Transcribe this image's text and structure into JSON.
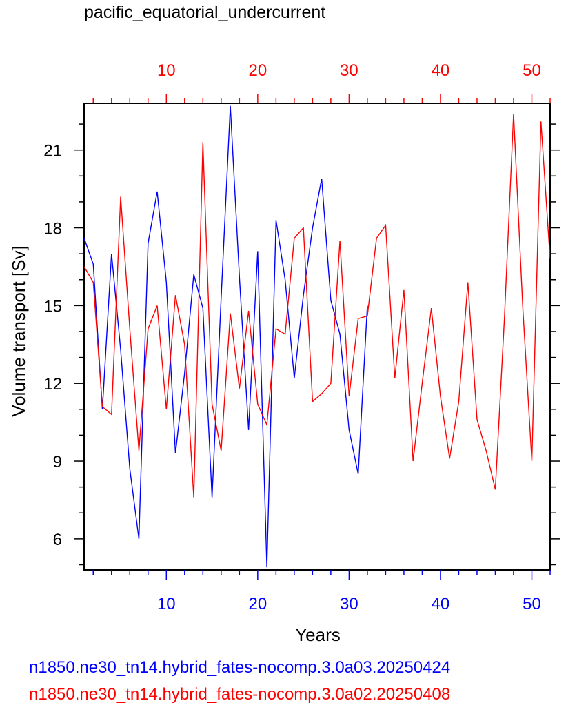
{
  "chart_data": {
    "type": "line",
    "title": "pacific_equatorial_undercurrent",
    "xlabel": "Years",
    "ylabel": "Volume transport [Sv]",
    "xlim": [
      1,
      52
    ],
    "ylim": [
      4.8,
      22.8
    ],
    "x_ticks": [
      10,
      20,
      30,
      40,
      50
    ],
    "y_ticks": [
      6,
      9,
      12,
      15,
      18,
      21
    ],
    "colors": {
      "series1": "#0000ff",
      "series2": "#ff0000",
      "axis": "#000000"
    },
    "series": [
      {
        "name": "n1850.ne30_tn14.hybrid_fates-nocomp.3.0a03.20250424",
        "color": "#0000ff",
        "axis": "bottom",
        "x": [
          1,
          2,
          3,
          4,
          5,
          6,
          7,
          8,
          9,
          10,
          11,
          12,
          13,
          14,
          15,
          16,
          17,
          18,
          19,
          20,
          21,
          22,
          23,
          24,
          25,
          26,
          27,
          28,
          29,
          30,
          31,
          32
        ],
        "values": [
          17.6,
          16.6,
          11.0,
          17.0,
          13.3,
          8.7,
          6.0,
          17.4,
          19.4,
          15.9,
          9.3,
          12.4,
          16.2,
          14.9,
          7.6,
          15.3,
          22.7,
          16.1,
          10.2,
          17.1,
          4.9,
          18.3,
          16.0,
          12.2,
          15.4,
          18.0,
          19.9,
          15.2,
          13.9,
          10.2,
          8.5,
          15.0
        ]
      },
      {
        "name": "n1850.ne30_tn14.hybrid_fates-nocomp.3.0a02.20250408",
        "color": "#ff0000",
        "axis": "top",
        "x": [
          1,
          2,
          3,
          4,
          5,
          6,
          7,
          8,
          9,
          10,
          11,
          12,
          13,
          14,
          15,
          16,
          17,
          18,
          19,
          20,
          21,
          22,
          23,
          24,
          25,
          26,
          27,
          28,
          29,
          30,
          31,
          32,
          33,
          34,
          35,
          36,
          37,
          38,
          39,
          40,
          41,
          42,
          43,
          44,
          45,
          46,
          47,
          48,
          49,
          50,
          51,
          52
        ],
        "values": [
          16.5,
          15.9,
          11.1,
          10.8,
          19.2,
          14.1,
          9.4,
          14.1,
          15.0,
          11.0,
          15.4,
          13.5,
          7.6,
          21.3,
          11.2,
          9.4,
          14.7,
          11.8,
          14.8,
          11.2,
          10.4,
          14.1,
          13.9,
          17.6,
          18.0,
          11.3,
          11.6,
          12.0,
          17.5,
          11.5,
          14.5,
          14.6,
          17.6,
          18.1,
          12.2,
          15.6,
          9.0,
          12.0,
          14.9,
          11.5,
          9.1,
          11.3,
          15.9,
          10.6,
          9.4,
          7.9,
          14.5,
          22.4,
          15.0,
          9.0,
          22.1,
          16.8
        ]
      }
    ]
  }
}
